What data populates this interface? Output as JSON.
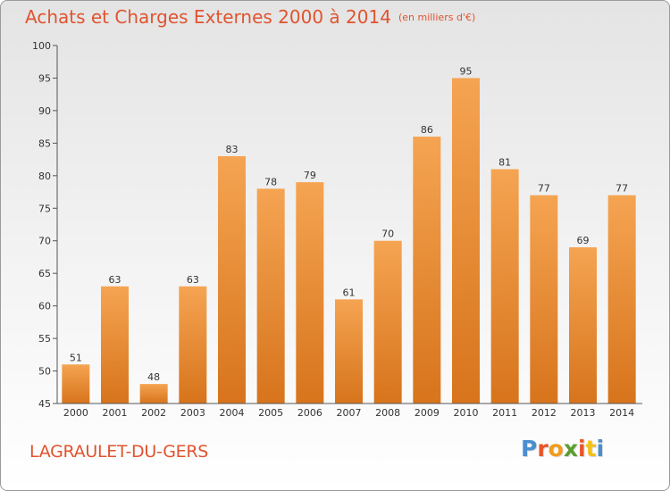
{
  "chart_title": "Achats et Charges Externes 2000 à 2014",
  "chart_unit": "(en milliers d'€)",
  "location": "LAGRAULET-DU-GERS",
  "logo": {
    "text": "Proxiti",
    "letter_colors": [
      "#4a8ed0",
      "#e8552a",
      "#f29b1c",
      "#5a9e2f",
      "#e8552a",
      "#f2c11c",
      "#4a8ed0"
    ]
  },
  "colors": {
    "bar_top": "#f5a452",
    "bar_bottom": "#d7741c",
    "title": "#e0542f"
  },
  "chart_data": {
    "type": "bar",
    "title": "Achats et Charges Externes 2000 à 2014",
    "subtitle": "(en milliers d'€)",
    "categories": [
      "2000",
      "2001",
      "2002",
      "2003",
      "2004",
      "2005",
      "2006",
      "2007",
      "2008",
      "2009",
      "2010",
      "2011",
      "2012",
      "2013",
      "2014"
    ],
    "values": [
      51,
      63,
      48,
      63,
      83,
      78,
      79,
      61,
      70,
      86,
      95,
      81,
      77,
      69,
      77
    ],
    "ylim": [
      45,
      100
    ],
    "yticks": [
      45,
      50,
      55,
      60,
      65,
      70,
      75,
      80,
      85,
      90,
      95,
      100
    ],
    "grid": false,
    "data_labels": true
  }
}
